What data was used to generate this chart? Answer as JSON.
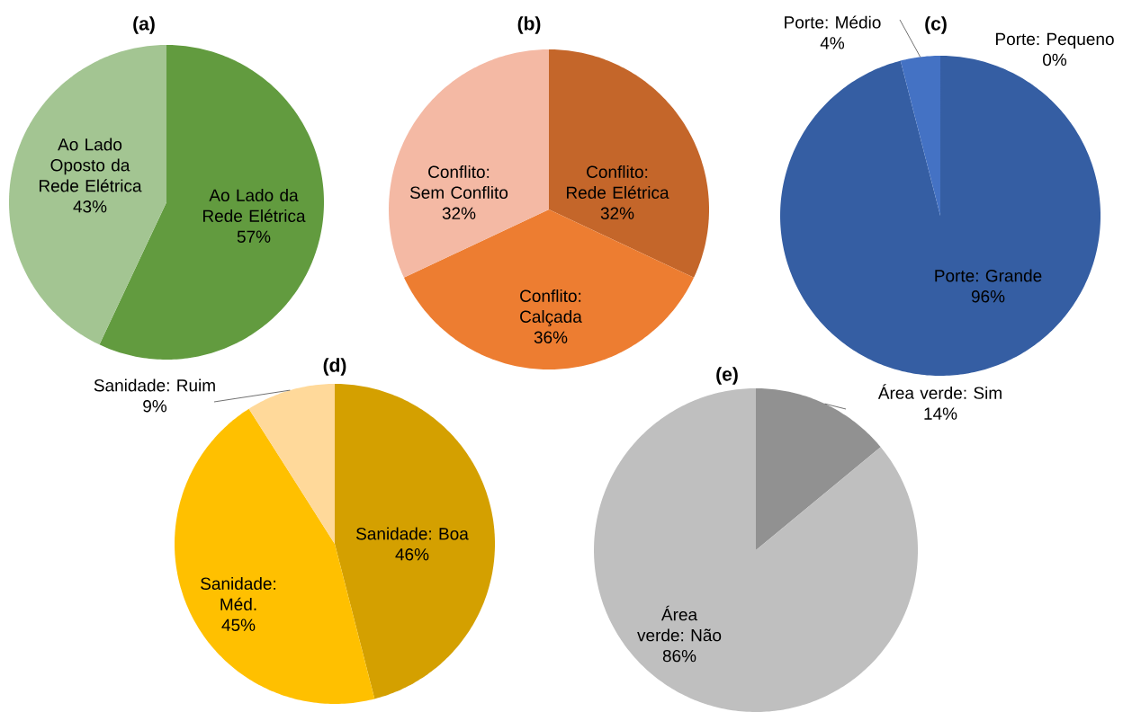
{
  "chart_data": [
    {
      "type": "pie",
      "title": "(a)",
      "categories": [
        "Ao Lado da Rede Elétrica",
        "Ao Lado Oposto da Rede Elétrica"
      ],
      "values": [
        57,
        43
      ],
      "colors": [
        "#629b3f",
        "#a3c592"
      ],
      "value_labels": [
        "57%",
        "43%"
      ]
    },
    {
      "type": "pie",
      "title": "(b)",
      "categories": [
        "Conflito: Rede Elétrica",
        "Conflito: Calçada",
        "Conflito: Sem Conflito"
      ],
      "values": [
        32,
        36,
        32
      ],
      "colors": [
        "#c4662a",
        "#ed7d31",
        "#f4b9a4"
      ],
      "value_labels": [
        "32%",
        "36%",
        "32%"
      ]
    },
    {
      "type": "pie",
      "title": "(c)",
      "categories": [
        "Porte: Grande",
        "Porte: Médio",
        "Porte: Pequeno"
      ],
      "values": [
        96,
        4,
        0
      ],
      "colors": [
        "#355ea3",
        "#4472c4",
        "#9fb4e0"
      ],
      "value_labels": [
        "96%",
        "4%",
        "0%"
      ]
    },
    {
      "type": "pie",
      "title": "(d)",
      "categories": [
        "Sanidade: Boa",
        "Sanidade: Méd.",
        "Sanidade: Ruim"
      ],
      "values": [
        46,
        45,
        9
      ],
      "colors": [
        "#d4a000",
        "#ffc000",
        "#ffd99a"
      ],
      "value_labels": [
        "46%",
        "45%",
        "9%"
      ]
    },
    {
      "type": "pie",
      "title": "(e)",
      "categories": [
        "Área verde: Sim",
        "Área verde: Não"
      ],
      "values": [
        14,
        86
      ],
      "colors": [
        "#919191",
        "#bfbfbf"
      ],
      "value_labels": [
        "14%",
        "86%"
      ]
    }
  ]
}
